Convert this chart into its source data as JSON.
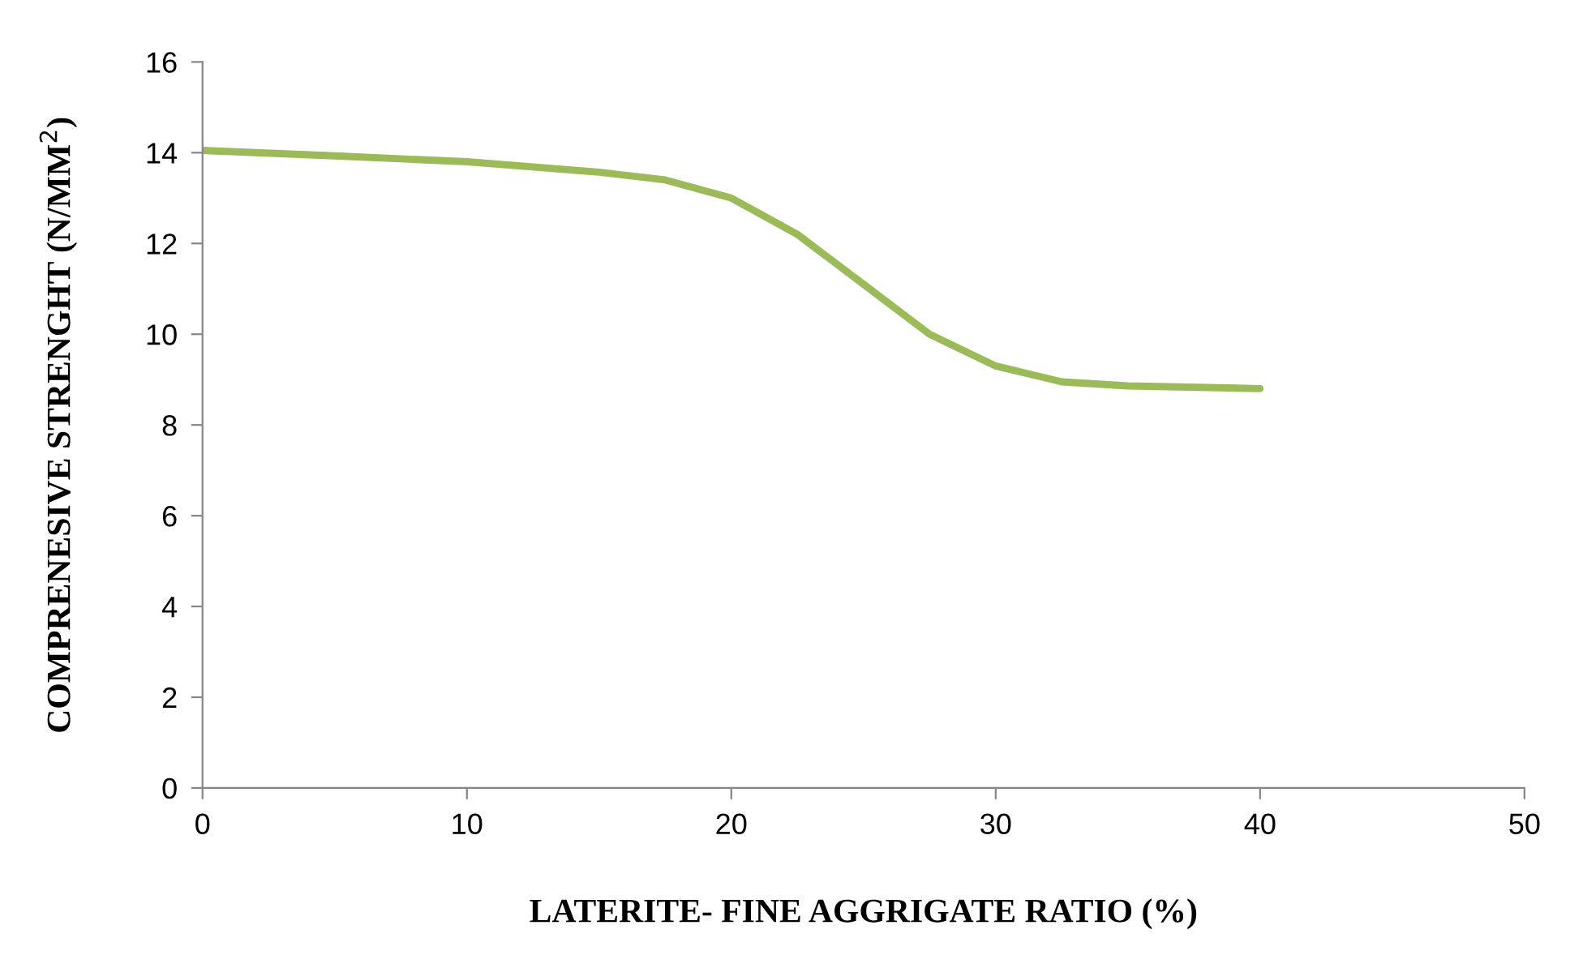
{
  "chart_data": {
    "type": "line",
    "xlabel": "LATERITE- FINE AGGRIGATE RATIO (%)",
    "ylabel": "COMPRENESIVE STRENGHT (N/MM$^{2}$)",
    "x": [
      0,
      5,
      10,
      15,
      17.5,
      20,
      22.5,
      25,
      27.5,
      30,
      32.5,
      35,
      40
    ],
    "series": [
      {
        "color": "#9bbb59",
        "values": [
          14.05,
          13.93,
          13.8,
          13.57,
          13.4,
          13.0,
          12.2,
          11.1,
          10.0,
          9.3,
          8.95,
          8.86,
          8.8
        ]
      }
    ],
    "xlim": [
      0,
      50
    ],
    "xticks": [
      0,
      10,
      20,
      30,
      40,
      50
    ],
    "ylim": [
      0,
      16
    ],
    "yticks": [
      0,
      2,
      4,
      6,
      8,
      10,
      12,
      14,
      16
    ],
    "grid": false,
    "legend": false,
    "marker": "none",
    "line_style": "solid"
  }
}
